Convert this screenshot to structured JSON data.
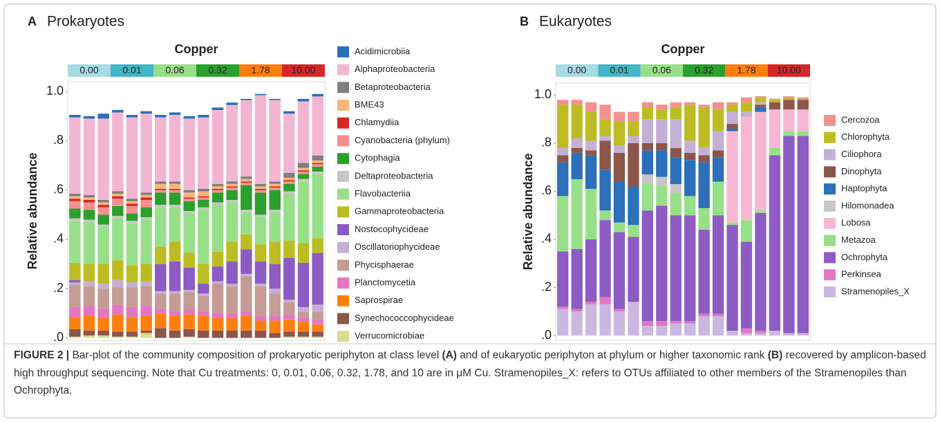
{
  "chart_data": [
    {
      "type": "stacked_bar",
      "panel": "A",
      "title": "Prokaryotes",
      "ylabel": "Relative abundance",
      "copper": {
        "title": "Copper",
        "levels": [
          {
            "label": "0.00",
            "color": "#a6dbe6"
          },
          {
            "label": "0.01",
            "color": "#41b6c4"
          },
          {
            "label": "0.06",
            "color": "#98df8a"
          },
          {
            "label": "0.32",
            "color": "#2ca02c"
          },
          {
            "label": "1.78",
            "color": "#ff7f0e"
          },
          {
            "label": "10.00",
            "color": "#d62728"
          }
        ]
      },
      "ylim": [
        -0.01,
        1.04
      ],
      "yticks": [
        {
          "value": 0,
          "label": ".0"
        },
        {
          "value": 0.2,
          "label": ".2"
        },
        {
          "value": 0.4,
          "label": ".4"
        },
        {
          "value": 0.6,
          "label": ".6"
        },
        {
          "value": 0.8,
          "label": ".8"
        },
        {
          "value": 1.0,
          "label": "1.0"
        }
      ],
      "series": [
        {
          "name": "Acidimicrobiia",
          "color": "#2b70b8",
          "values": [
            0.01,
            0.01,
            0.02,
            0.01,
            0.01,
            0.01,
            0.01,
            0.01,
            0.01,
            0.01,
            0.01,
            0.01,
            0.005,
            0.005,
            0.005,
            0.01,
            0.01,
            0.01
          ]
        },
        {
          "name": "Alphaproteobacteria",
          "color": "#f2b6d3",
          "values": [
            0.31,
            0.31,
            0.33,
            0.32,
            0.33,
            0.32,
            0.26,
            0.27,
            0.29,
            0.29,
            0.3,
            0.31,
            0.31,
            0.36,
            0.33,
            0.24,
            0.25,
            0.24
          ]
        },
        {
          "name": "Betaproteobacteria",
          "color": "#7f7f7f",
          "values": [
            0.01,
            0.01,
            0.01,
            0.01,
            0.01,
            0.01,
            0.01,
            0.01,
            0.01,
            0.01,
            0.01,
            0.01,
            0.01,
            0.01,
            0.01,
            0.02,
            0.02,
            0.02
          ]
        },
        {
          "name": "BME43",
          "color": "#f7b879",
          "values": [
            0.01,
            0.01,
            0.01,
            0.01,
            0.01,
            0.01,
            0.02,
            0.02,
            0.02,
            0.02,
            0.01,
            0.01,
            0.01,
            0.01,
            0.01,
            0.01,
            0.01,
            0.01
          ]
        },
        {
          "name": "Chlamydiia",
          "color": "#d62728",
          "values": [
            0.01,
            0.01,
            0.01,
            0.01,
            0.01,
            0.01,
            0.005,
            0.005,
            0.005,
            0.005,
            0.005,
            0.005,
            0.005,
            0.005,
            0.005,
            0.005,
            0.005,
            0.005
          ]
        },
        {
          "name": "Cyanobacteria (phylum)",
          "color": "#f4908e",
          "values": [
            0.03,
            0.03,
            0.03,
            0.03,
            0.03,
            0.03,
            0.01,
            0.01,
            0.01,
            0.01,
            0.01,
            0.01,
            0.01,
            0.01,
            0.01,
            0.01,
            0.01,
            0.01
          ]
        },
        {
          "name": "Cytophagia",
          "color": "#2ca02c",
          "values": [
            0.04,
            0.04,
            0.04,
            0.04,
            0.03,
            0.04,
            0.05,
            0.05,
            0.04,
            0.03,
            0.04,
            0.04,
            0.1,
            0.09,
            0.08,
            0.03,
            0.02,
            0.02
          ]
        },
        {
          "name": "Deltaproteobacteria",
          "color": "#c7c7c7",
          "values": [
            0.01,
            0.01,
            0.01,
            0.01,
            0.01,
            0.01,
            0.01,
            0.01,
            0.01,
            0.01,
            0.01,
            0.01,
            0.01,
            0.01,
            0.01,
            0.01,
            0.01,
            0.01
          ]
        },
        {
          "name": "Flavobacteriia",
          "color": "#98df8a",
          "values": [
            0.17,
            0.17,
            0.15,
            0.17,
            0.17,
            0.18,
            0.16,
            0.14,
            0.16,
            0.22,
            0.19,
            0.16,
            0.09,
            0.11,
            0.12,
            0.19,
            0.25,
            0.26
          ]
        },
        {
          "name": "Gammaproteobacteria",
          "color": "#bcbd22",
          "values": [
            0.07,
            0.07,
            0.08,
            0.08,
            0.07,
            0.07,
            0.07,
            0.08,
            0.06,
            0.08,
            0.06,
            0.08,
            0.06,
            0.07,
            0.09,
            0.07,
            0.08,
            0.06
          ]
        },
        {
          "name": "Nostocophycideae",
          "color": "#8c5cc4",
          "values": [
            0.01,
            0,
            0,
            0,
            0,
            0,
            0.11,
            0.12,
            0.09,
            0.04,
            0.06,
            0.09,
            0.1,
            0.09,
            0.1,
            0.17,
            0.18,
            0.21
          ]
        },
        {
          "name": "Oscillatoriophycideae",
          "color": "#c5b0d5",
          "values": [
            0.01,
            0.02,
            0.02,
            0.03,
            0.02,
            0.02,
            0.01,
            0.01,
            0.01,
            0.01,
            0.01,
            0.01,
            0.01,
            0.01,
            0.02,
            0.01,
            0.02,
            0.03
          ]
        },
        {
          "name": "Phycisphaerae",
          "color": "#c49c94",
          "values": [
            0.09,
            0.08,
            0.08,
            0.07,
            0.08,
            0.08,
            0.06,
            0.07,
            0.07,
            0.06,
            0.12,
            0.11,
            0.14,
            0.12,
            0.09,
            0.05,
            0.02,
            0.03
          ]
        },
        {
          "name": "Planctomycetia",
          "color": "#e377c2",
          "values": [
            0.04,
            0.04,
            0.04,
            0.04,
            0.04,
            0.04,
            0.02,
            0.02,
            0.02,
            0.02,
            0.02,
            0.02,
            0.02,
            0.02,
            0.02,
            0.02,
            0.02,
            0.02
          ]
        },
        {
          "name": "Saprospirae",
          "color": "#ff7f0e",
          "values": [
            0.05,
            0.06,
            0.05,
            0.07,
            0.06,
            0.06,
            0.06,
            0.06,
            0.06,
            0.06,
            0.05,
            0.05,
            0.06,
            0.04,
            0.05,
            0.05,
            0.04,
            0.03
          ]
        },
        {
          "name": "Synechococcophycideae",
          "color": "#8c564b",
          "values": [
            0.03,
            0.02,
            0.02,
            0.02,
            0.02,
            0.01,
            0.04,
            0.03,
            0.03,
            0.03,
            0.03,
            0.03,
            0.03,
            0.03,
            0.02,
            0.02,
            0.02,
            0.02
          ]
        },
        {
          "name": "Verrucomicrobiae",
          "color": "#dbdb8d",
          "values": [
            0.005,
            0.01,
            0.01,
            0.005,
            0.005,
            0.02,
            0,
            0,
            0.005,
            0,
            0,
            0,
            0,
            0,
            0,
            0.005,
            0.005,
            0.005
          ]
        }
      ]
    },
    {
      "type": "stacked_bar",
      "panel": "B",
      "title": "Eukaryotes",
      "ylabel": "Relative abundance",
      "copper": {
        "title": "Copper",
        "levels": [
          {
            "label": "0.00",
            "color": "#a6dbe6"
          },
          {
            "label": "0.01",
            "color": "#41b6c4"
          },
          {
            "label": "0.06",
            "color": "#98df8a"
          },
          {
            "label": "0.32",
            "color": "#2ca02c"
          },
          {
            "label": "1.78",
            "color": "#ff7f0e"
          },
          {
            "label": "10.00",
            "color": "#d62728"
          }
        ]
      },
      "ylim": [
        -0.02,
        1.05
      ],
      "yticks": [
        {
          "value": 0,
          "label": ".0"
        },
        {
          "value": 0.2,
          "label": ".2"
        },
        {
          "value": 0.4,
          "label": ".4"
        },
        {
          "value": 0.6,
          "label": ".6"
        },
        {
          "value": 0.8,
          "label": ".8"
        },
        {
          "value": 1.0,
          "label": "1.0"
        }
      ],
      "series": [
        {
          "name": "Cercozoa",
          "color": "#f4908e",
          "values": [
            0.02,
            0.02,
            0.04,
            0.06,
            0.04,
            0.04,
            0.02,
            0.02,
            0.02,
            0.01,
            0.01,
            0.03,
            0.01,
            0.02,
            0.005,
            0.005,
            0.005,
            0.005
          ]
        },
        {
          "name": "Chlorophyta",
          "color": "#bcbd22",
          "values": [
            0.18,
            0.14,
            0.12,
            0.07,
            0.1,
            0.06,
            0.05,
            0.04,
            0.05,
            0.15,
            0.17,
            0.09,
            0.03,
            0.04,
            0.02,
            0.01,
            0.01,
            0.005
          ]
        },
        {
          "name": "Ciliophora",
          "color": "#c5b0d5",
          "values": [
            0.03,
            0.04,
            0.04,
            0.02,
            0.03,
            0.03,
            0.1,
            0.1,
            0.12,
            0.05,
            0.03,
            0.08,
            0.05,
            0.02,
            0.01,
            0,
            0,
            0
          ]
        },
        {
          "name": "Dinophyta",
          "color": "#8c564b",
          "values": [
            0.03,
            0.02,
            0.02,
            0.12,
            0.12,
            0.18,
            0.03,
            0.03,
            0.04,
            0.03,
            0.03,
            0.03,
            0.02,
            0,
            0.01,
            0.03,
            0.04,
            0.04
          ]
        },
        {
          "name": "Haptophyta",
          "color": "#2b70b8",
          "values": [
            0.14,
            0.11,
            0.14,
            0.17,
            0.17,
            0.16,
            0.1,
            0.11,
            0.11,
            0.15,
            0.19,
            0.1,
            0.01,
            0,
            0.02,
            0,
            0,
            0
          ]
        },
        {
          "name": "Hilomonadea",
          "color": "#c7c7c7",
          "values": [
            0,
            0,
            0,
            0,
            0,
            0,
            0.04,
            0.04,
            0.04,
            0,
            0,
            0,
            0,
            0,
            0,
            0,
            0,
            0
          ]
        },
        {
          "name": "Lobosa",
          "color": "#f7b6d2",
          "values": [
            0,
            0,
            0,
            0,
            0,
            0,
            0,
            0,
            0,
            0,
            0,
            0,
            0.38,
            0.43,
            0.41,
            0.16,
            0.09,
            0.09
          ]
        },
        {
          "name": "Metazoa",
          "color": "#98df8a",
          "values": [
            0.23,
            0.29,
            0.21,
            0.04,
            0.04,
            0.05,
            0.11,
            0.08,
            0.09,
            0.08,
            0.09,
            0.14,
            0.01,
            0.09,
            0.01,
            0.03,
            0.02,
            0.02
          ]
        },
        {
          "name": "Ochrophyta",
          "color": "#8c5cc4",
          "values": [
            0.23,
            0.25,
            0.26,
            0.32,
            0.32,
            0.27,
            0.46,
            0.48,
            0.44,
            0.44,
            0.35,
            0.41,
            0.44,
            0.36,
            0.49,
            0.73,
            0.82,
            0.82
          ]
        },
        {
          "name": "Perkinsea",
          "color": "#e377c2",
          "values": [
            0.01,
            0.01,
            0.01,
            0.03,
            0.01,
            0,
            0.02,
            0.02,
            0.01,
            0.01,
            0.01,
            0.01,
            0,
            0.02,
            0.01,
            0,
            0,
            0
          ]
        },
        {
          "name": "Stramenopiles_X",
          "color": "#cbb8e0",
          "values": [
            0.11,
            0.1,
            0.13,
            0.13,
            0.1,
            0.14,
            0.04,
            0.04,
            0.05,
            0.05,
            0.08,
            0.08,
            0.02,
            0.01,
            0.01,
            0.02,
            0.01,
            0.01
          ]
        }
      ]
    }
  ],
  "caption": [
    {
      "text": "FIGURE 2 |",
      "bold": true
    },
    {
      "text": " Bar-plot of the community composition of prokaryotic periphyton at class level ",
      "bold": false
    },
    {
      "text": "(A)",
      "bold": true
    },
    {
      "text": " and of eukaryotic periphyton at phylum or higher taxonomic rank ",
      "bold": false
    },
    {
      "text": "(B)",
      "bold": true
    },
    {
      "text": " recovered by amplicon-based high throughput sequencing. Note that Cu treatments: 0, 0.01, 0.06, 0.32, 1.78, and 10 are in μM Cu. Stramenopiles_X: refers to OTUs affiliated to other members of the Stramenopiles than Ochrophyta.",
      "bold": false
    }
  ]
}
